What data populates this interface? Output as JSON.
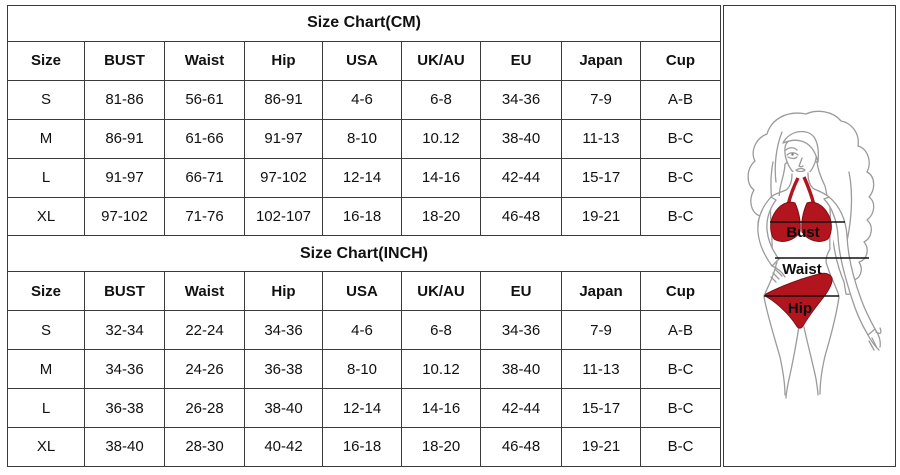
{
  "colors": {
    "border": "#3b3b3b",
    "text": "#111111",
    "background": "#ffffff",
    "bikini_red": "#b2151d",
    "bikini_edge": "#7f1015",
    "figure_outline": "#9b9b9b",
    "measure_line": "#111111"
  },
  "size_tables": [
    {
      "title": "Size Chart(CM)",
      "columns": [
        "Size",
        "BUST",
        "Waist",
        "Hip",
        "USA",
        "UK/AU",
        "EU",
        "Japan",
        "Cup"
      ],
      "rows": [
        [
          "S",
          "81-86",
          "56-61",
          "86-91",
          "4-6",
          "6-8",
          "34-36",
          "7-9",
          "A-B"
        ],
        [
          "M",
          "86-91",
          "61-66",
          "91-97",
          "8-10",
          "10.12",
          "38-40",
          "11-13",
          "B-C"
        ],
        [
          "L",
          "91-97",
          "66-71",
          "97-102",
          "12-14",
          "14-16",
          "42-44",
          "15-17",
          "B-C"
        ],
        [
          "XL",
          "97-102",
          "71-76",
          "102-107",
          "16-18",
          "18-20",
          "46-48",
          "19-21",
          "B-C"
        ]
      ]
    },
    {
      "title": "Size Chart(INCH)",
      "columns": [
        "Size",
        "BUST",
        "Waist",
        "Hip",
        "USA",
        "UK/AU",
        "EU",
        "Japan",
        "Cup"
      ],
      "rows": [
        [
          "S",
          "32-34",
          "22-24",
          "34-36",
          "4-6",
          "6-8",
          "34-36",
          "7-9",
          "A-B"
        ],
        [
          "M",
          "34-36",
          "24-26",
          "36-38",
          "8-10",
          "10.12",
          "38-40",
          "11-13",
          "B-C"
        ],
        [
          "L",
          "36-38",
          "26-28",
          "38-40",
          "12-14",
          "14-16",
          "42-44",
          "15-17",
          "B-C"
        ],
        [
          "XL",
          "38-40",
          "28-30",
          "40-42",
          "16-18",
          "18-20",
          "46-48",
          "19-21",
          "B-C"
        ]
      ]
    }
  ],
  "figure": {
    "labels": {
      "bust": "Bust",
      "waist": "Waist",
      "hip": "Hip"
    }
  }
}
